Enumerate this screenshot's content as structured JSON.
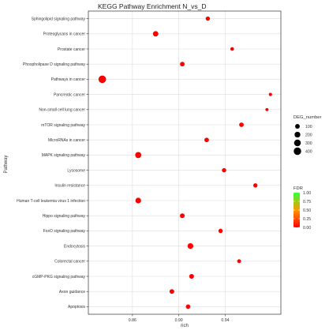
{
  "chart_data": {
    "type": "scatter",
    "title": "KEGG Pathway Enrichment  N_vs_D",
    "xlabel": "rich",
    "ylabel": "Pathway",
    "xlim": [
      0.822,
      0.988
    ],
    "x_ticks": [
      "0.86",
      "0.90",
      "0.94"
    ],
    "x_tick_values": [
      0.86,
      0.9,
      0.94
    ],
    "grid": true,
    "categories": [
      "Sphingolipid signaling pathway",
      "Proteoglycans in cancer",
      "Prostate cancer",
      "Phospholipase D signaling pathway",
      "Pathways in cancer",
      "Pancreatic cancer",
      "Non-small cell lung cancer",
      "mTOR signaling pathway",
      "MicroRNAs in cancer",
      "MAPK signaling pathway",
      "Lysosome",
      "Insulin resistance",
      "Human T-cell leukemia virus 1 infection",
      "Hippo signaling pathway",
      "FoxO signaling pathway",
      "Endocytosis",
      "Colorectal cancer",
      "cGMP-PKG signaling pathway",
      "Axon guidance",
      "Apoptosis"
    ],
    "points": [
      {
        "pathway": "Sphingolipid signaling pathway",
        "rich": 0.925,
        "deg": 75,
        "fdr": 0.0
      },
      {
        "pathway": "Proteoglycans in cancer",
        "rich": 0.88,
        "deg": 160,
        "fdr": 0.0
      },
      {
        "pathway": "Prostate cancer",
        "rich": 0.946,
        "deg": 40,
        "fdr": 0.0
      },
      {
        "pathway": "Phospholipase D signaling pathway",
        "rich": 0.903,
        "deg": 95,
        "fdr": 0.0
      },
      {
        "pathway": "Pathways in cancer",
        "rich": 0.834,
        "deg": 420,
        "fdr": 0.0
      },
      {
        "pathway": "Pancreatic cancer",
        "rich": 0.979,
        "deg": 25,
        "fdr": 0.0
      },
      {
        "pathway": "Non-small cell lung cancer",
        "rich": 0.976,
        "deg": 20,
        "fdr": 0.0
      },
      {
        "pathway": "mTOR signaling pathway",
        "rich": 0.954,
        "deg": 95,
        "fdr": 0.0
      },
      {
        "pathway": "MicroRNAs in cancer",
        "rich": 0.924,
        "deg": 90,
        "fdr": 0.0
      },
      {
        "pathway": "MAPK signaling pathway",
        "rich": 0.865,
        "deg": 230,
        "fdr": 0.0
      },
      {
        "pathway": "Lysosome",
        "rich": 0.939,
        "deg": 75,
        "fdr": 0.0
      },
      {
        "pathway": "Insulin resistance",
        "rich": 0.966,
        "deg": 70,
        "fdr": 0.0
      },
      {
        "pathway": "Human T-cell leukemia virus 1 infection",
        "rich": 0.865,
        "deg": 190,
        "fdr": 0.0
      },
      {
        "pathway": "Hippo signaling pathway",
        "rich": 0.903,
        "deg": 105,
        "fdr": 0.0
      },
      {
        "pathway": "FoxO signaling pathway",
        "rich": 0.936,
        "deg": 75,
        "fdr": 0.0
      },
      {
        "pathway": "Endocytosis",
        "rich": 0.91,
        "deg": 190,
        "fdr": 0.0
      },
      {
        "pathway": "Colorectal cancer",
        "rich": 0.952,
        "deg": 50,
        "fdr": 0.0
      },
      {
        "pathway": "cGMP-PKG signaling pathway",
        "rich": 0.911,
        "deg": 110,
        "fdr": 0.0
      },
      {
        "pathway": "Axon guidance",
        "rich": 0.894,
        "deg": 100,
        "fdr": 0.0
      },
      {
        "pathway": "Apoptosis",
        "rich": 0.908,
        "deg": 90,
        "fdr": 0.0
      }
    ],
    "size_legend": {
      "title": "DEG_number",
      "entries": [
        {
          "label": "100",
          "value": 100
        },
        {
          "label": "200",
          "value": 200
        },
        {
          "label": "300",
          "value": 300
        },
        {
          "label": "400",
          "value": 400
        }
      ]
    },
    "color_legend": {
      "title": "FDR",
      "ticks": [
        {
          "label": "1.00",
          "value": 1.0
        },
        {
          "label": "0.75",
          "value": 0.75
        },
        {
          "label": "0.50",
          "value": 0.5
        },
        {
          "label": "0.25",
          "value": 0.25
        },
        {
          "label": "0.00",
          "value": 0.0
        }
      ],
      "low_color": "#ff0000",
      "mid_color": "#ff9900",
      "high_color": "#33ff33"
    },
    "colors": {
      "panel_bg": "#ffffff",
      "panel_border": "#333333",
      "grid": "#dddddd",
      "text": "#333333",
      "title": "#222222"
    }
  }
}
